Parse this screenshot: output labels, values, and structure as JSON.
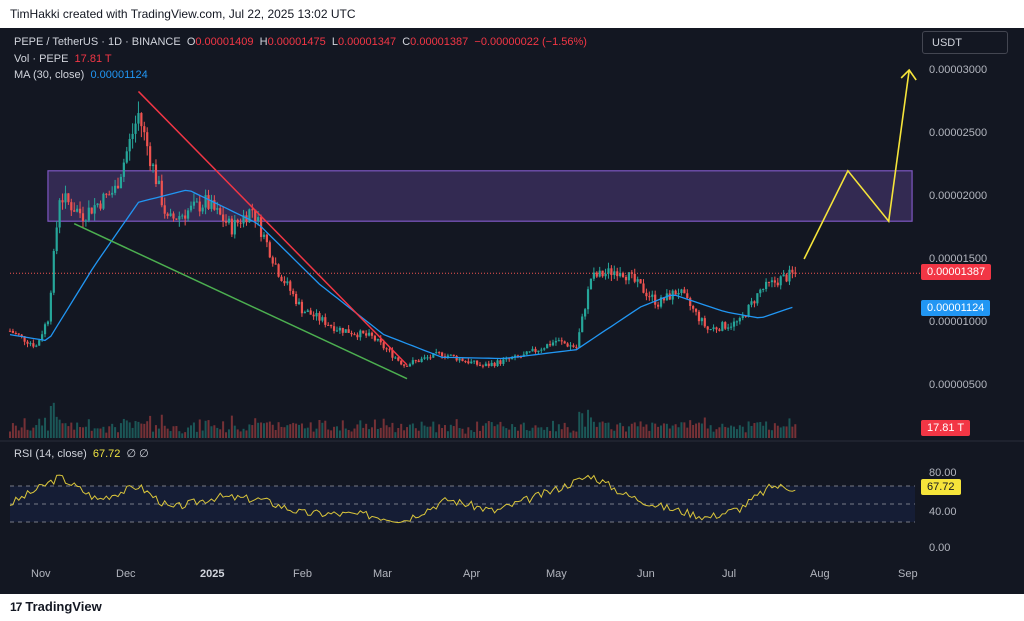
{
  "header": {
    "text": "TimHakki created with TradingView.com, Jul 22, 2025 13:02 UTC"
  },
  "legend": {
    "symbol": "PEPE / TetherUS · 1D · BINANCE",
    "o_label": "O",
    "o_value": "0.00001409",
    "h_label": "H",
    "h_value": "0.00001475",
    "l_label": "L",
    "l_value": "0.00001347",
    "c_label": "C",
    "c_value": "0.00001387",
    "change": "−0.00000022 (−1.56%)",
    "vol_label": "Vol · PEPE",
    "vol_value": "17.81 T",
    "ma_label": "MA (30, close)",
    "ma_value": "0.00001124",
    "rsi_label": "RSI (14, close)",
    "rsi_value": "67.72",
    "rsi_icons": "∅ ∅"
  },
  "currency_button": "USDT",
  "tags": {
    "last_price": "0.00001387",
    "ma": "0.00001124",
    "volume": "17.81 T",
    "rsi": "67.72"
  },
  "colors": {
    "background": "#131722",
    "up": "#26a69a",
    "down": "#ef5350",
    "ma": "#2196f3",
    "rsi": "#d9c53b",
    "resistance_line": "#f23645",
    "support_line": "#4caf50",
    "projection": "#f5e43a",
    "zone": "#7e57c2"
  },
  "footer": {
    "logo": "TradingView",
    "mark": "17"
  },
  "chart_data": {
    "type": "candlestick",
    "symbol": "PEPE/USDT",
    "interval": "1D",
    "price_axis_ticks": [
      "0.00003000",
      "0.00002500",
      "0.00002000",
      "0.00001500",
      "0.00001000",
      "0.00000500"
    ],
    "rsi_axis_ticks": [
      "80.00",
      "40.00",
      "0.00"
    ],
    "x_tick_labels": [
      "Nov",
      "Dec",
      "2025",
      "Feb",
      "Mar",
      "Apr",
      "May",
      "Jun",
      "Jul",
      "Aug",
      "Sep"
    ],
    "close_approx": [
      {
        "date": "2024-10-26",
        "close": 9.3e-06
      },
      {
        "date": "2024-11-04",
        "close": 8.1e-06
      },
      {
        "date": "2024-11-08",
        "close": 1.03e-05
      },
      {
        "date": "2024-11-12",
        "close": 2e-05
      },
      {
        "date": "2024-11-20",
        "close": 1.85e-05
      },
      {
        "date": "2024-12-01",
        "close": 2.05e-05
      },
      {
        "date": "2024-12-09",
        "close": 2.65e-05
      },
      {
        "date": "2024-12-19",
        "close": 1.8e-05
      },
      {
        "date": "2025-01-01",
        "close": 1.95e-05
      },
      {
        "date": "2025-01-10",
        "close": 1.75e-05
      },
      {
        "date": "2025-01-17",
        "close": 1.9e-05
      },
      {
        "date": "2025-01-26",
        "close": 1.4e-05
      },
      {
        "date": "2025-02-03",
        "close": 1.1e-05
      },
      {
        "date": "2025-02-15",
        "close": 9.5e-06
      },
      {
        "date": "2025-02-27",
        "close": 8.8e-06
      },
      {
        "date": "2025-03-10",
        "close": 6.6e-06
      },
      {
        "date": "2025-03-23",
        "close": 7.5e-06
      },
      {
        "date": "2025-04-06",
        "close": 6.5e-06
      },
      {
        "date": "2025-04-20",
        "close": 7.3e-06
      },
      {
        "date": "2025-05-01",
        "close": 8.5e-06
      },
      {
        "date": "2025-05-08",
        "close": 8e-06
      },
      {
        "date": "2025-05-13",
        "close": 1.35e-05
      },
      {
        "date": "2025-05-23",
        "close": 1.42e-05
      },
      {
        "date": "2025-06-05",
        "close": 1.15e-05
      },
      {
        "date": "2025-06-12",
        "close": 1.25e-05
      },
      {
        "date": "2025-06-22",
        "close": 9.4e-06
      },
      {
        "date": "2025-07-03",
        "close": 1e-05
      },
      {
        "date": "2025-07-10",
        "close": 1.25e-05
      },
      {
        "date": "2025-07-16",
        "close": 1.33e-05
      },
      {
        "date": "2025-07-22",
        "close": 1.387e-05
      }
    ],
    "ma30_approx": [
      {
        "date": "2024-10-26",
        "value": 9e-06
      },
      {
        "date": "2024-11-08",
        "value": 8.5e-06
      },
      {
        "date": "2024-11-24",
        "value": 1.45e-05
      },
      {
        "date": "2024-12-09",
        "value": 1.95e-05
      },
      {
        "date": "2024-12-26",
        "value": 2.05e-05
      },
      {
        "date": "2025-01-19",
        "value": 1.78e-05
      },
      {
        "date": "2025-02-09",
        "value": 1.3e-05
      },
      {
        "date": "2025-03-03",
        "value": 9e-06
      },
      {
        "date": "2025-03-23",
        "value": 7.2e-06
      },
      {
        "date": "2025-04-13",
        "value": 7.1e-06
      },
      {
        "date": "2025-05-08",
        "value": 7.8e-06
      },
      {
        "date": "2025-05-30",
        "value": 1.12e-05
      },
      {
        "date": "2025-06-10",
        "value": 1.22e-05
      },
      {
        "date": "2025-06-28",
        "value": 1.08e-05
      },
      {
        "date": "2025-07-10",
        "value": 1.03e-05
      },
      {
        "date": "2025-07-22",
        "value": 1.124e-05
      }
    ],
    "rsi_approx": [
      {
        "date": "2024-10-26",
        "value": 50
      },
      {
        "date": "2024-11-12",
        "value": 80
      },
      {
        "date": "2024-11-25",
        "value": 55
      },
      {
        "date": "2024-12-09",
        "value": 70
      },
      {
        "date": "2024-12-20",
        "value": 45
      },
      {
        "date": "2025-01-05",
        "value": 58
      },
      {
        "date": "2025-01-20",
        "value": 55
      },
      {
        "date": "2025-02-03",
        "value": 40
      },
      {
        "date": "2025-02-25",
        "value": 38
      },
      {
        "date": "2025-03-10",
        "value": 32
      },
      {
        "date": "2025-03-25",
        "value": 55
      },
      {
        "date": "2025-04-10",
        "value": 42
      },
      {
        "date": "2025-04-30",
        "value": 65
      },
      {
        "date": "2025-05-13",
        "value": 82
      },
      {
        "date": "2025-05-25",
        "value": 60
      },
      {
        "date": "2025-06-05",
        "value": 48
      },
      {
        "date": "2025-06-22",
        "value": 35
      },
      {
        "date": "2025-07-03",
        "value": 45
      },
      {
        "date": "2025-07-14",
        "value": 70
      },
      {
        "date": "2025-07-22",
        "value": 67.72
      }
    ],
    "drawings": {
      "resistance_zone": {
        "from": "2024-11-08",
        "to": "2025-08-31",
        "low": 1.8e-05,
        "high": 2.2e-05
      },
      "descending_resistance": [
        {
          "date": "2024-12-09",
          "value": 2.83e-05
        },
        {
          "date": "2025-03-11",
          "value": 6.6e-06
        }
      ],
      "descending_support": [
        {
          "date": "2024-11-17",
          "value": 1.78e-05
        },
        {
          "date": "2025-03-11",
          "value": 5.5e-06
        }
      ],
      "projection_path": [
        {
          "date": "2025-07-25",
          "value": 1.5e-05
        },
        {
          "date": "2025-08-09",
          "value": 2.2e-05
        },
        {
          "date": "2025-08-23",
          "value": 1.8e-05
        },
        {
          "date": "2025-08-30",
          "value": 3e-05
        }
      ]
    }
  }
}
